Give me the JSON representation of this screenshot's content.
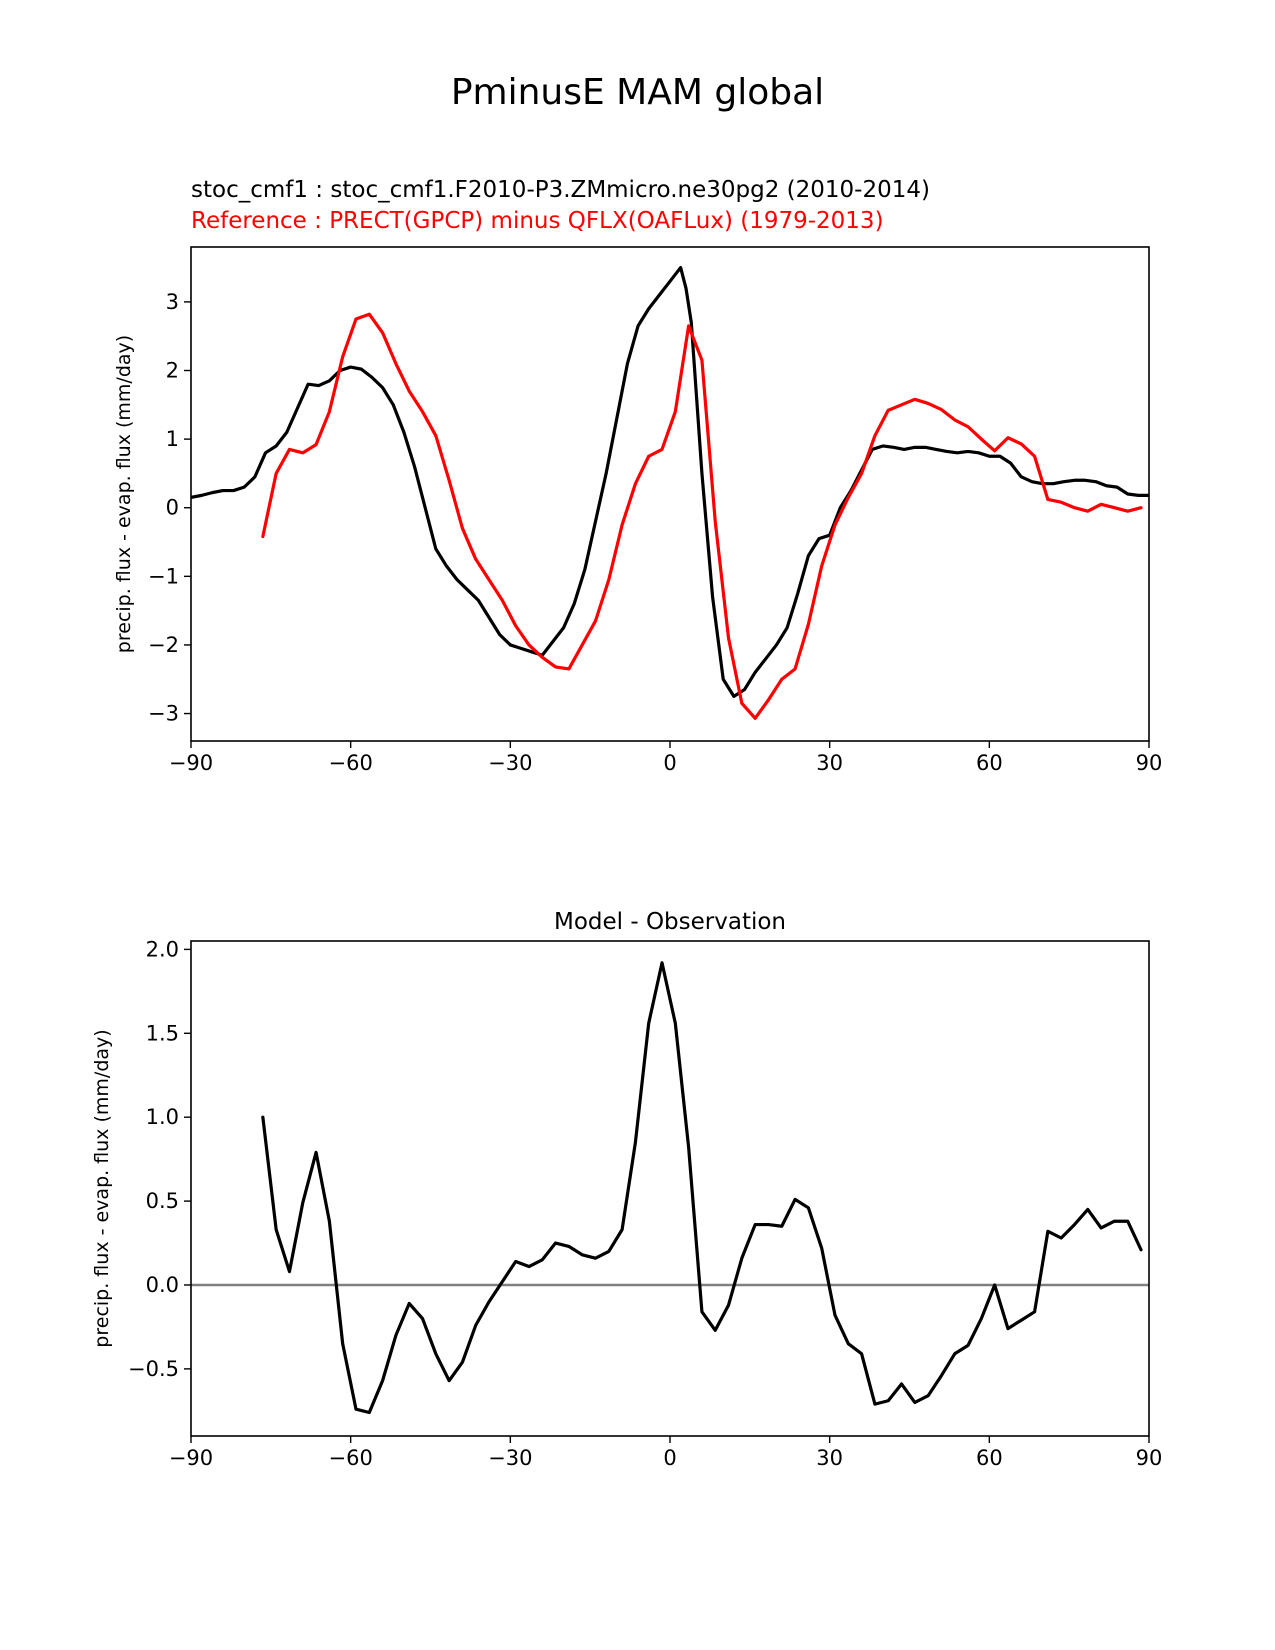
{
  "figure": {
    "title": "PminusE MAM global",
    "test_label": "stoc_cmf1 : stoc_cmf1.F2010-P3.ZMmicro.ne30pg2 (2010-2014)",
    "ref_label": "Reference : PRECT(GPCP) minus QFLX(OAFLux) (1979-2013)"
  },
  "colors": {
    "test": "#000000",
    "reference": "#ff0000",
    "zero_line": "#808080"
  },
  "chart_data": [
    {
      "type": "line",
      "title": "",
      "xlabel": "",
      "ylabel": "precip. flux - evap. flux (mm/day)",
      "xlim": [
        -90,
        90
      ],
      "ylim": [
        -3.4,
        3.8
      ],
      "xticks": [
        -90,
        -60,
        -30,
        0,
        30,
        60,
        90
      ],
      "xtick_labels": [
        "−90",
        "−60",
        "−30",
        "0",
        "30",
        "60",
        "90"
      ],
      "yticks": [
        -3,
        -2,
        -1,
        0,
        1,
        2,
        3
      ],
      "ytick_labels": [
        "−3",
        "−2",
        "−1",
        "0",
        "1",
        "2",
        "3"
      ],
      "series": [
        {
          "name": "stoc_cmf1",
          "color": "#000000",
          "x": [
            -90,
            -88,
            -86,
            -84,
            -82,
            -80,
            -78,
            -76,
            -74,
            -72,
            -70,
            -68,
            -66,
            -64,
            -62,
            -60,
            -58,
            -56,
            -54,
            -52,
            -50,
            -48,
            -46,
            -44,
            -42,
            -40,
            -38,
            -36,
            -34,
            -32,
            -30,
            -28,
            -26,
            -24,
            -22,
            -20,
            -18,
            -16,
            -14,
            -12,
            -10,
            -8,
            -6,
            -4,
            -2,
            0,
            2,
            3,
            4,
            6,
            8,
            10,
            12,
            14,
            16,
            18,
            20,
            22,
            24,
            26,
            28,
            30,
            32,
            34,
            36,
            38,
            40,
            42,
            44,
            46,
            48,
            50,
            52,
            54,
            56,
            58,
            60,
            62,
            64,
            66,
            68,
            70,
            72,
            74,
            76,
            78,
            80,
            82,
            84,
            86,
            88,
            90
          ],
          "y": [
            0.15,
            0.18,
            0.22,
            0.25,
            0.25,
            0.3,
            0.45,
            0.8,
            0.9,
            1.1,
            1.45,
            1.8,
            1.78,
            1.85,
            2.0,
            2.05,
            2.02,
            1.9,
            1.75,
            1.5,
            1.1,
            0.6,
            0.0,
            -0.6,
            -0.85,
            -1.05,
            -1.2,
            -1.35,
            -1.6,
            -1.85,
            -2.0,
            -2.05,
            -2.1,
            -2.15,
            -1.95,
            -1.75,
            -1.4,
            -0.9,
            -0.2,
            0.5,
            1.3,
            2.1,
            2.65,
            2.9,
            3.1,
            3.3,
            3.5,
            3.2,
            2.7,
            0.5,
            -1.3,
            -2.5,
            -2.75,
            -2.65,
            -2.4,
            -2.2,
            -2.0,
            -1.75,
            -1.25,
            -0.7,
            -0.45,
            -0.4,
            0.0,
            0.25,
            0.55,
            0.85,
            0.9,
            0.88,
            0.85,
            0.88,
            0.88,
            0.85,
            0.82,
            0.8,
            0.82,
            0.8,
            0.75,
            0.75,
            0.65,
            0.45,
            0.38,
            0.35,
            0.35,
            0.38,
            0.4,
            0.4,
            0.38,
            0.32,
            0.3,
            0.2,
            0.18,
            0.18
          ]
        },
        {
          "name": "Reference",
          "color": "#ff0000",
          "x": [
            -76.5,
            -74,
            -71.5,
            -69,
            -66.5,
            -64,
            -61.5,
            -59,
            -56.5,
            -54,
            -51.5,
            -49,
            -46.5,
            -44,
            -41.5,
            -39,
            -36.5,
            -34,
            -31.5,
            -29,
            -26.5,
            -24,
            -21.5,
            -19,
            -16.5,
            -14,
            -11.5,
            -9,
            -6.5,
            -4,
            -1.5,
            1,
            3.5,
            6,
            8.5,
            11,
            13.5,
            16,
            18.5,
            21,
            23.5,
            26,
            28.5,
            31,
            33.5,
            36,
            38.5,
            41,
            43.5,
            46,
            48.5,
            51,
            53.5,
            56,
            58.5,
            61,
            63.5,
            66,
            68.5,
            71,
            73.5,
            76,
            78.5,
            81,
            83.5,
            86,
            88.5
          ],
          "y": [
            -0.42,
            0.5,
            0.85,
            0.8,
            0.92,
            1.4,
            2.2,
            2.75,
            2.82,
            2.55,
            2.1,
            1.7,
            1.4,
            1.05,
            0.4,
            -0.3,
            -0.75,
            -1.05,
            -1.35,
            -1.72,
            -2.0,
            -2.18,
            -2.32,
            -2.35,
            -2.0,
            -1.65,
            -1.05,
            -0.25,
            0.35,
            0.75,
            0.85,
            1.4,
            2.65,
            2.15,
            -0.2,
            -1.9,
            -2.85,
            -3.07,
            -2.8,
            -2.5,
            -2.35,
            -1.7,
            -0.85,
            -0.25,
            0.15,
            0.5,
            1.05,
            1.42,
            1.5,
            1.58,
            1.52,
            1.43,
            1.28,
            1.18,
            1.0,
            0.83,
            1.02,
            0.93,
            0.75,
            0.12,
            0.08,
            0.0,
            -0.05,
            0.05,
            0.0,
            -0.05,
            0.0
          ]
        }
      ]
    },
    {
      "type": "line",
      "title": "Model - Observation",
      "xlabel": "",
      "ylabel": "precip. flux - evap. flux (mm/day)",
      "xlim": [
        -90,
        90
      ],
      "ylim": [
        -0.9,
        2.05
      ],
      "xticks": [
        -90,
        -60,
        -30,
        0,
        30,
        60,
        90
      ],
      "xtick_labels": [
        "−90",
        "−60",
        "−30",
        "0",
        "30",
        "60",
        "90"
      ],
      "yticks": [
        -0.5,
        0.0,
        0.5,
        1.0,
        1.5,
        2.0
      ],
      "ytick_labels": [
        "−0.5",
        "0.0",
        "0.5",
        "1.0",
        "1.5",
        "2.0"
      ],
      "hline": 0,
      "series": [
        {
          "name": "Model - Observation",
          "color": "#000000",
          "x": [
            -76.5,
            -74,
            -71.5,
            -69,
            -66.5,
            -64,
            -61.5,
            -59,
            -56.5,
            -54,
            -51.5,
            -49,
            -46.5,
            -44,
            -41.5,
            -39,
            -36.5,
            -34,
            -31.5,
            -29,
            -26.5,
            -24,
            -21.5,
            -19,
            -16.5,
            -14,
            -11.5,
            -9,
            -6.5,
            -4,
            -1.5,
            1,
            3.5,
            6,
            8.5,
            11,
            13.5,
            16,
            18.5,
            21,
            23.5,
            26,
            28.5,
            31,
            33.5,
            36,
            38.5,
            41,
            43.5,
            46,
            48.5,
            51,
            53.5,
            56,
            58.5,
            61,
            63.5,
            66,
            68.5,
            71,
            73.5,
            76,
            78.5,
            81,
            83.5,
            86,
            88.5
          ],
          "y": [
            1.0,
            0.33,
            0.08,
            0.49,
            0.79,
            0.38,
            -0.35,
            -0.74,
            -0.76,
            -0.57,
            -0.3,
            -0.11,
            -0.2,
            -0.41,
            -0.57,
            -0.46,
            -0.24,
            -0.1,
            0.02,
            0.14,
            0.11,
            0.15,
            0.25,
            0.23,
            0.18,
            0.16,
            0.2,
            0.33,
            0.85,
            1.56,
            1.92,
            1.56,
            0.82,
            -0.16,
            -0.27,
            -0.12,
            0.16,
            0.36,
            0.36,
            0.35,
            0.51,
            0.46,
            0.22,
            -0.18,
            -0.35,
            -0.41,
            -0.71,
            -0.69,
            -0.59,
            -0.7,
            -0.66,
            -0.54,
            -0.41,
            -0.36,
            -0.2,
            0.0,
            -0.26,
            -0.21,
            -0.16,
            0.32,
            0.28,
            0.36,
            0.45,
            0.34,
            0.38,
            0.38,
            0.21
          ]
        }
      ]
    }
  ]
}
